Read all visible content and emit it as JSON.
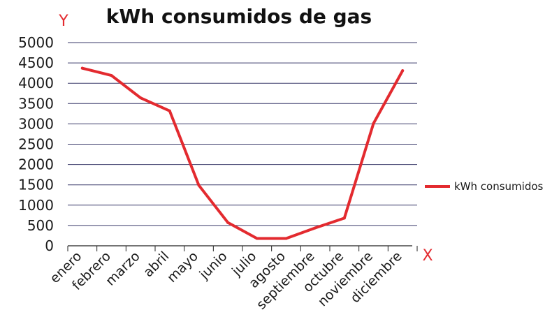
{
  "chart_data": {
    "type": "line",
    "title": "kWh consumidos de gas",
    "ylabel": "Y",
    "xlabel": "X",
    "categories": [
      "enero",
      "febrero",
      "marzo",
      "abril",
      "mayo",
      "junio",
      "julio",
      "agosto",
      "septiembre",
      "octubre",
      "noviembre",
      "diciembre"
    ],
    "series": [
      {
        "name": "kWh consumidos",
        "values": [
          4370,
          4190,
          3640,
          3320,
          1490,
          570,
          180,
          180,
          440,
          680,
          3010,
          4310
        ],
        "color": "#e32a2f"
      }
    ],
    "ylim": [
      0,
      5000
    ],
    "yticks": [
      0,
      500,
      1000,
      1500,
      2000,
      2500,
      3000,
      3500,
      4000,
      4500,
      5000
    ],
    "grid": true,
    "legend": "right",
    "axis_letter_color": "#e32a2f"
  }
}
